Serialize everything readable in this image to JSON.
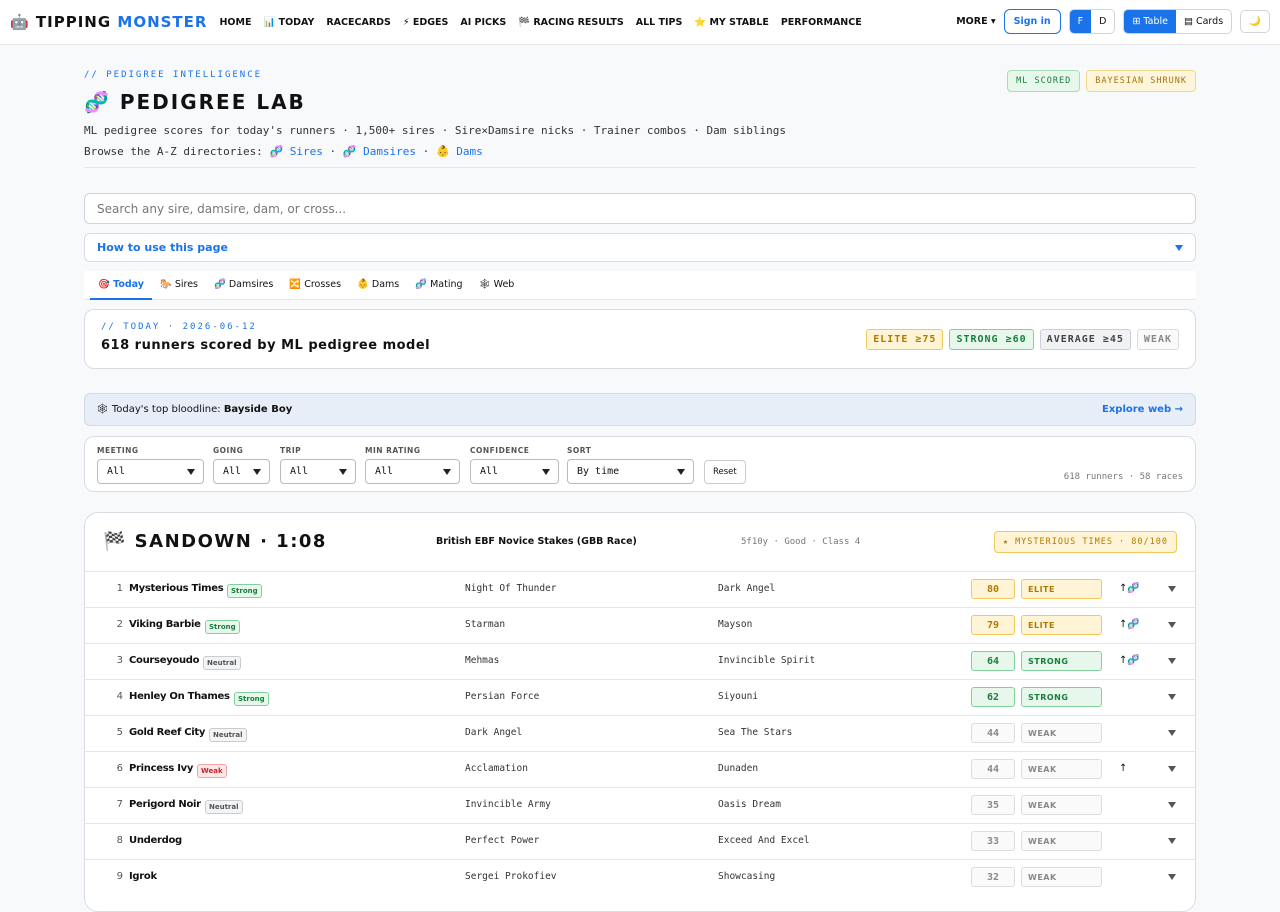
{
  "nav": {
    "brand_a": "TIPPING",
    "brand_b": "MONSTER",
    "links": [
      "HOME",
      "📊 TODAY",
      "RACECARDS",
      "⚡ EDGES",
      "AI PICKS",
      "🏁 RACING RESULTS",
      "ALL TIPS",
      "⭐ MY STABLE",
      "PERFORMANCE"
    ],
    "more": "MORE ▾",
    "signin": "Sign in",
    "toggle": [
      "F",
      "D"
    ],
    "view": [
      "⊞ Table",
      "▤ Cards"
    ],
    "theme": "🌙"
  },
  "header": {
    "eyebrow": "// PEDIGREE INTELLIGENCE",
    "title": "🧬 PEDIGREE LAB",
    "subtitle": "ML pedigree scores for today's runners · 1,500+ sires · Sire×Damsire nicks · Trainer combos · Dam siblings",
    "browse_label": "Browse the A-Z directories:",
    "browse_links": [
      "🧬 Sires",
      "🧬 Damsires",
      "👶 Dams"
    ],
    "badges": [
      "ML SCORED",
      "BAYESIAN SHRUNK"
    ]
  },
  "search_placeholder": "Search any sire, damsire, dam, or cross...",
  "howto": "How to use this page",
  "tabs": [
    "🎯 Today",
    "🐎 Sires",
    "🧬 Damsires",
    "🔀 Crosses",
    "👶 Dams",
    "🧬 Mating",
    "🕸 Web"
  ],
  "summary": {
    "eyebrow": "// TODAY · 2026-06-12",
    "title": "618 runners scored by ML pedigree model",
    "legend": [
      "ELITE ≥75",
      "STRONG ≥60",
      "AVERAGE ≥45",
      "WEAK"
    ]
  },
  "bloodline": {
    "label": "🕸 Today's top bloodline:",
    "name": "Bayside Boy",
    "link": "Explore web →"
  },
  "filters": [
    {
      "label": "MEETING",
      "value": "All"
    },
    {
      "label": "GOING",
      "value": "All"
    },
    {
      "label": "TRIP",
      "value": "All"
    },
    {
      "label": "MIN RATING",
      "value": "All"
    },
    {
      "label": "CONFIDENCE",
      "value": "All"
    },
    {
      "label": "SORT",
      "value": "By time"
    }
  ],
  "reset": "Reset",
  "count": "618 runners · 58 races",
  "race": {
    "title": "🏁 SANDOWN · 1:08",
    "name": "British EBF Novice Stakes (GBB Race)",
    "meta": "5f10y · Good · Class 4",
    "top": "★ MYSTERIOUS TIMES · 80/100",
    "runners": [
      {
        "num": 1,
        "horse": "Mysterious Times",
        "tag": "Strong",
        "sire": "Night Of Thunder",
        "damsire": "Dark Angel",
        "score": 80,
        "tier": "ELITE",
        "icons": "↑🧬"
      },
      {
        "num": 2,
        "horse": "Viking Barbie",
        "tag": "Strong",
        "sire": "Starman",
        "damsire": "Mayson",
        "score": 79,
        "tier": "ELITE",
        "icons": "↑🧬"
      },
      {
        "num": 3,
        "horse": "Courseyoudo",
        "tag": "Neutral",
        "sire": "Mehmas",
        "damsire": "Invincible Spirit",
        "score": 64,
        "tier": "STRONG",
        "icons": "↑🧬"
      },
      {
        "num": 4,
        "horse": "Henley On Thames",
        "tag": "Strong",
        "sire": "Persian Force",
        "damsire": "Siyouni",
        "score": 62,
        "tier": "STRONG"
      },
      {
        "num": 5,
        "horse": "Gold Reef City",
        "tag": "Neutral",
        "sire": "Dark Angel",
        "damsire": "Sea The Stars",
        "score": 44,
        "tier": "WEAK"
      },
      {
        "num": 6,
        "horse": "Princess Ivy",
        "tag": "Weak",
        "sire": "Acclamation",
        "damsire": "Dunaden",
        "score": 44,
        "tier": "WEAK",
        "icons": "↑"
      },
      {
        "num": 7,
        "horse": "Perigord Noir",
        "tag": "Neutral",
        "sire": "Invincible Army",
        "damsire": "Oasis Dream",
        "score": 35,
        "tier": "WEAK"
      },
      {
        "num": 8,
        "horse": "Underdog",
        "sire": "Perfect Power",
        "damsire": "Exceed And Excel",
        "score": 33,
        "tier": "WEAK"
      },
      {
        "num": 9,
        "horse": "Igrok",
        "sire": "Sergei Prokofiev",
        "damsire": "Showcasing",
        "score": 32,
        "tier": "WEAK"
      }
    ]
  }
}
